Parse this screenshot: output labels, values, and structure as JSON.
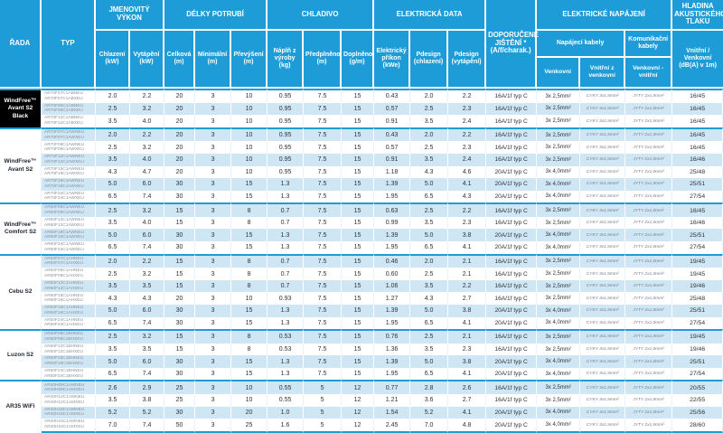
{
  "table": {
    "header": {
      "rada": "ŘADA",
      "typ": "TYP",
      "power_title": "JMENOVITÝ VÝKON",
      "power_cooling": "Chlazení (kW)",
      "power_heating": "Vytápění (kW)",
      "pipe_title": "DÉLKY POTRUBÍ",
      "pipe_total": "Celková (m)",
      "pipe_min": "Minimální (m)",
      "pipe_elev": "Převýšení (m)",
      "refrigerant_title": "CHLADIVO",
      "ref_charge": "Náplň z výroby (kg)",
      "ref_precharged": "Předplněno (m)",
      "ref_added": "Doplněno (g/m)",
      "electrical_title": "ELEKTRICKÁ DATA",
      "el_input": "Elektrický příkon (kWe)",
      "el_pdesign_c": "Pdesign (chlazení)",
      "el_pdesign_h": "Pdesign (vytápění)",
      "breaker": "DOPORUČENÉ JIŠTĚNÍ * (A/f/charak.)",
      "supply_title": "ELEKTRICKÉ NAPÁJENÍ",
      "supply_power": "Napájecí kabely",
      "supply_comm": "Komunikační kabely",
      "supply_outdoor": "Venkovní",
      "supply_indoor": "Vnitřní z venkovní",
      "supply_comm_sub": "Venkovní - vnitřní",
      "noise_title": "HLADINA AKUSTICKÉHO TLAKU",
      "noise_sub": "Vnitřní / Venkovní (dB(A) v 1m)"
    },
    "colors": {
      "header_blue": "#1e9cd8",
      "row_blue": "#cfe6f5",
      "series_black_bg": "#000000"
    },
    "groups": [
      {
        "brand": "WindFree™",
        "model": "Avant S2 Black",
        "black": true,
        "rows": [
          {
            "typ": [
              "AR70F07C1ABNEU",
              "AR70F07C1ABXEU"
            ],
            "v": [
              "2.0",
              "2.2",
              "20",
              "3",
              "10",
              "0.95",
              "7.5",
              "15",
              "0.43",
              "2.0",
              "2.2",
              "16A/1f typ C",
              "3x 2,5mm²",
              "CYKY 3x1,5mm²",
              "JYTY 2x1,0mm²",
              "16/45"
            ]
          },
          {
            "typ": [
              "AR70F09C1ABNEU",
              "AR70F09C1ABXEU"
            ],
            "v": [
              "2.5",
              "3.2",
              "20",
              "3",
              "10",
              "0.95",
              "7.5",
              "15",
              "0.57",
              "2.5",
              "2.3",
              "16A/1f typ C",
              "3x 2,5mm²",
              "CYKY 3x1,5mm²",
              "JYTY 2x1,0mm²",
              "16/45"
            ]
          },
          {
            "typ": [
              "AR70F12C1ABNEU",
              "AR70F12C1ABXEU"
            ],
            "v": [
              "3.5",
              "4.0",
              "20",
              "3",
              "10",
              "0.95",
              "7.5",
              "15",
              "0.91",
              "3.5",
              "2.4",
              "16A/1f typ C",
              "3x 2,5mm²",
              "CYKY 3x1,5mm²",
              "JYTY 2x1,0mm²",
              "16/45"
            ]
          }
        ]
      },
      {
        "brand": "WindFree™",
        "model": "Avant S2",
        "black": false,
        "rows": [
          {
            "typ": [
              "AR70F07C1AWNEU",
              "AR70F07C1AWXEU"
            ],
            "v": [
              "2.0",
              "2.2",
              "20",
              "3",
              "10",
              "0.95",
              "7.5",
              "15",
              "0.43",
              "2.0",
              "2.2",
              "16A/1f typ C",
              "3x 2,5mm²",
              "CYKY 3x1,5mm²",
              "JYTY 2x1,0mm²",
              "16/45"
            ]
          },
          {
            "typ": [
              "AR70F09C1AWNEU",
              "AR70F09C1AWXEU"
            ],
            "v": [
              "2.5",
              "3.2",
              "20",
              "3",
              "10",
              "0.95",
              "7.5",
              "15",
              "0.57",
              "2.5",
              "2.3",
              "16A/1f typ C",
              "3x 2,5mm²",
              "CYKY 3x1,5mm²",
              "JYTY 2x1,0mm²",
              "16/45"
            ]
          },
          {
            "typ": [
              "AR70F12C1AWNEU",
              "AR70F12C1AWXEU"
            ],
            "v": [
              "3.5",
              "4.0",
              "20",
              "3",
              "10",
              "0.95",
              "7.5",
              "15",
              "0.91",
              "3.5",
              "2.4",
              "16A/1f typ C",
              "3x 2,5mm²",
              "CYKY 3x1,5mm²",
              "JYTY 2x1,0mm²",
              "16/46"
            ]
          },
          {
            "typ": [
              "AR70F15C1AWNEU",
              "AR70F15C1AWXEU"
            ],
            "v": [
              "4.3",
              "4.7",
              "20",
              "3",
              "10",
              "0.95",
              "7.5",
              "15",
              "1.18",
              "4.3",
              "4.6",
              "20A/1f typ C",
              "3x 4,0mm²",
              "CYKY 3x1,5mm²",
              "JYTY 2x1,0mm²",
              "25/48"
            ]
          },
          {
            "typ": [
              "AR70F18C1AWNEU",
              "AR70F18C1AWXEU"
            ],
            "v": [
              "5.0",
              "6.0",
              "30",
              "3",
              "15",
              "1.3",
              "7.5",
              "15",
              "1.39",
              "5.0",
              "4.1",
              "20A/1f typ C",
              "3x 4,0mm²",
              "CYKY 3x1,5mm²",
              "JYTY 2x1,0mm²",
              "25/51"
            ]
          },
          {
            "typ": [
              "AR70F24C1AWNEU",
              "AR70F24C1AWXEU"
            ],
            "v": [
              "6.5",
              "7.4",
              "30",
              "3",
              "15",
              "1.3",
              "7.5",
              "15",
              "1.95",
              "6.5",
              "4.3",
              "20A/1f typ C",
              "3x 4,0mm²",
              "CYKY 3x1,5mm²",
              "JYTY 2x1,0mm²",
              "27/54"
            ]
          }
        ]
      },
      {
        "brand": "WindFree™",
        "model": "Comfort S2",
        "black": false,
        "rows": [
          {
            "typ": [
              "AR60F09C1AWNEU",
              "AR60F09C1AWXEU"
            ],
            "v": [
              "2.5",
              "3.2",
              "15",
              "3",
              "8",
              "0.7",
              "7.5",
              "15",
              "0.63",
              "2.5",
              "2.2",
              "16A/1f typ C",
              "3x 2,5mm²",
              "CYKY 3x1,5mm²",
              "JYTY 2x1,0mm²",
              "16/45"
            ]
          },
          {
            "typ": [
              "AR60F12C1AWNEU",
              "AR60F12C1AWXEU"
            ],
            "v": [
              "3.5",
              "4.0",
              "15",
              "3",
              "8",
              "0.7",
              "7.5",
              "15",
              "0.99",
              "3.5",
              "2.3",
              "16A/1f typ C",
              "3x 2,5mm²",
              "CYKY 3x1,5mm²",
              "JYTY 2x1,0mm²",
              "16/46"
            ]
          },
          {
            "typ": [
              "AR60F18C1AWNEU",
              "AR60F18C1AWXEU"
            ],
            "v": [
              "5.0",
              "6.0",
              "30",
              "3",
              "15",
              "1.3",
              "7.5",
              "15",
              "1.39",
              "5.0",
              "3.8",
              "20A/1f typ C",
              "3x 4,0mm²",
              "CYKY 3x1,5mm²",
              "JYTY 2x1,0mm²",
              "25/51"
            ]
          },
          {
            "typ": [
              "AR60F24C1AWNEU",
              "AR60F24C1AWXEU"
            ],
            "v": [
              "6.5",
              "7.4",
              "30",
              "3",
              "15",
              "1.3",
              "7.5",
              "15",
              "1.95",
              "6.5",
              "4.1",
              "20A/1f typ C",
              "3x 4,0mm²",
              "CYKY 3x1,5mm²",
              "JYTY 2x1,0mm²",
              "27/54"
            ]
          }
        ]
      },
      {
        "brand": null,
        "model": "Cebu S2",
        "black": false,
        "rows": [
          {
            "typ": [
              "AR50F07C1AHNEU",
              "AR50F07C1AHXEU"
            ],
            "v": [
              "2.0",
              "2.2",
              "15",
              "3",
              "8",
              "0.7",
              "7.5",
              "15",
              "0.46",
              "2.0",
              "2.1",
              "16A/1f typ C",
              "3x 2,5mm²",
              "CYKY 3x1,5mm²",
              "JYTY 2x1,0mm²",
              "19/45"
            ]
          },
          {
            "typ": [
              "AR50F09C1AHNEU",
              "AR50F09C1AHXEU"
            ],
            "v": [
              "2.5",
              "3.2",
              "15",
              "3",
              "8",
              "0.7",
              "7.5",
              "15",
              "0.60",
              "2.5",
              "2.1",
              "16A/1f typ C",
              "3x 2,5mm²",
              "CYKY 3x1,5mm²",
              "JYTY 2x1,0mm²",
              "19/45"
            ]
          },
          {
            "typ": [
              "AR50F12C1AHNEU",
              "AR50F12C1AHXEU"
            ],
            "v": [
              "3.5",
              "3.5",
              "15",
              "3",
              "8",
              "0.7",
              "7.5",
              "15",
              "1.06",
              "3.5",
              "2.2",
              "16A/1f typ C",
              "3x 2,5mm²",
              "CYKY 3x1,5mm²",
              "JYTY 2x1,0mm²",
              "19/46"
            ]
          },
          {
            "typ": [
              "AR50F15C1AHNEU",
              "AR50F15C1AHXEU"
            ],
            "v": [
              "4.3",
              "4.3",
              "20",
              "3",
              "10",
              "0.93",
              "7.5",
              "15",
              "1.27",
              "4.3",
              "2.7",
              "16A/1f typ C",
              "3x 2,5mm²",
              "CYKY 3x1,5mm²",
              "JYTY 2x1,0mm²",
              "25/48"
            ]
          },
          {
            "typ": [
              "AR50F18C1AHNEU",
              "AR50F18C1AHXEU"
            ],
            "v": [
              "5.0",
              "6.0",
              "30",
              "3",
              "15",
              "1.3",
              "7.5",
              "15",
              "1.39",
              "5.0",
              "3.8",
              "20A/1f typ C",
              "3x 4,0mm²",
              "CYKY 3x1,5mm²",
              "JYTY 2x1,0mm²",
              "25/51"
            ]
          },
          {
            "typ": [
              "AR50F24C1AHNEU",
              "AR50F24C1AHXEU"
            ],
            "v": [
              "6.5",
              "7.4",
              "30",
              "3",
              "15",
              "1.3",
              "7.5",
              "15",
              "1.95",
              "6.5",
              "4.1",
              "20A/1f typ C",
              "3x 4,0mm²",
              "CYKY 3x1,5mm²",
              "JYTY 2x1,0mm²",
              "27/54"
            ]
          }
        ]
      },
      {
        "brand": null,
        "model": "Luzon S2",
        "black": false,
        "rows": [
          {
            "typ": [
              "AR50F09C1BHNEU",
              "AR50F09C1BHXEU"
            ],
            "v": [
              "2.5",
              "3.2",
              "15",
              "3",
              "8",
              "0.53",
              "7.5",
              "15",
              "0.76",
              "2.5",
              "2.1",
              "16A/1f typ C",
              "3x 2,5mm²",
              "CYKY 3x1,5mm²",
              "JYTY 2x1,0mm²",
              "19/45"
            ]
          },
          {
            "typ": [
              "AR50F12C1BHNEU",
              "AR50F12C1BHXEU"
            ],
            "v": [
              "3.5",
              "3.5",
              "15",
              "3",
              "8",
              "0.53",
              "7.5",
              "15",
              "1.36",
              "3.5",
              "2.3",
              "16A/1f typ C",
              "3x 2,5mm²",
              "CYKY 3x1,5mm²",
              "JYTY 2x1,0mm²",
              "19/46"
            ]
          },
          {
            "typ": [
              "AR50F18C1BHNEU",
              "AR50F18C1BHXEU"
            ],
            "v": [
              "5.0",
              "6.0",
              "30",
              "3",
              "15",
              "1.3",
              "7.5",
              "15",
              "1.39",
              "5.0",
              "3.8",
              "20A/1f typ C",
              "3x 4,0mm²",
              "CYKY 3x1,5mm²",
              "JYTY 2x1,0mm²",
              "25/51"
            ]
          },
          {
            "typ": [
              "AR50F24C1BHNEU",
              "AR50F24C1BHXEU"
            ],
            "v": [
              "6.5",
              "7.4",
              "30",
              "3",
              "15",
              "1.3",
              "7.5",
              "15",
              "1.95",
              "6.5",
              "4.1",
              "20A/1f typ C",
              "3x 4,0mm²",
              "CYKY 3x1,5mm²",
              "JYTY 2x1,0mm²",
              "27/54"
            ]
          }
        ]
      },
      {
        "brand": null,
        "model": "AR35 WiFi",
        "black": false,
        "rows": [
          {
            "typ": [
              "AR40H09C1AMNEU",
              "AR40H09C1AMXEU"
            ],
            "v": [
              "2.6",
              "2.9",
              "25",
              "3",
              "10",
              "0.55",
              "5",
              "12",
              "0.77",
              "2.8",
              "2.6",
              "16A/1f typ C",
              "3x 2,5mm²",
              "CYKY 3x1,5mm²",
              "JYTY 2x1,0mm²",
              "20/55"
            ]
          },
          {
            "typ": [
              "AR40H12C1AMNEU",
              "AR40H12C1AMXEU"
            ],
            "v": [
              "3.5",
              "3.8",
              "25",
              "3",
              "10",
              "0.55",
              "5",
              "12",
              "1.21",
              "3.6",
              "2.7",
              "16A/1f typ C",
              "3x 2,5mm²",
              "CYKY 3x1,5mm²",
              "JYTY 2x1,0mm²",
              "22/55"
            ]
          },
          {
            "typ": [
              "AR40H18C1AMNEU",
              "AR40H18C1AMXEU"
            ],
            "v": [
              "5.2",
              "5.2",
              "30",
              "3",
              "20",
              "1.0",
              "5",
              "12",
              "1.54",
              "5.2",
              "4.1",
              "20A/1f typ C",
              "3x 4,0mm²",
              "CYKY 3x1,5mm²",
              "JYTY 2x1,0mm²",
              "25/56"
            ]
          },
          {
            "typ": [
              "AR40H24C1AMNEU",
              "AR40H24C1AMXEU"
            ],
            "v": [
              "7.0",
              "7.4",
              "50",
              "3",
              "25",
              "1.6",
              "5",
              "12",
              "2.45",
              "7.0",
              "4.8",
              "20A/1f typ C",
              "3x 4,0mm²",
              "CYKY 3x1,5mm²",
              "JYTY 2x1,0mm²",
              "28/60"
            ]
          }
        ]
      }
    ]
  }
}
